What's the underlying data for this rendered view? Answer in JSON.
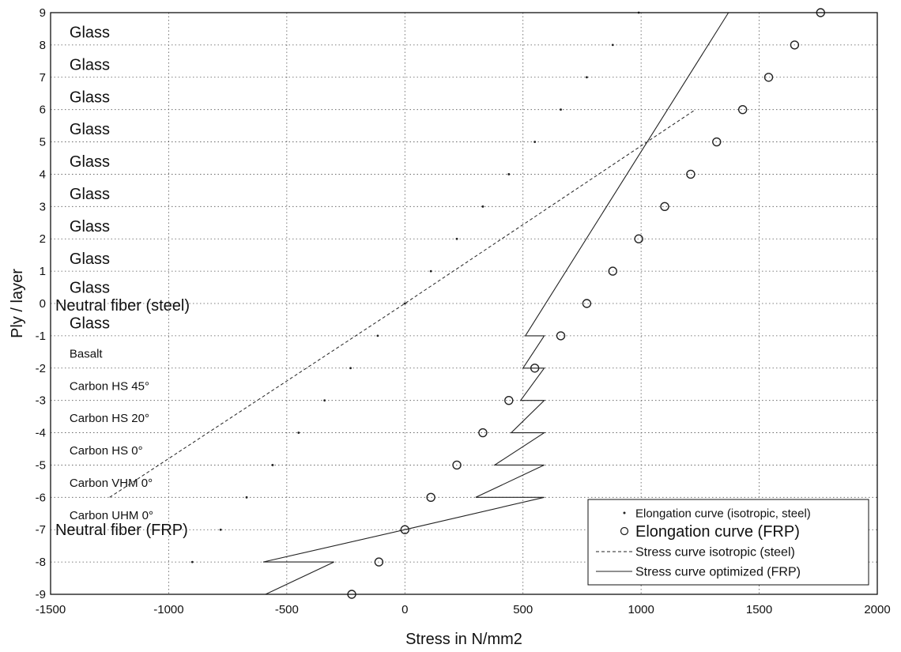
{
  "chart_data": {
    "type": "line",
    "xlabel": "Stress in N/mm2",
    "ylabel": "Ply / layer",
    "xlim": [
      -1500,
      2000
    ],
    "ylim": [
      -9,
      9
    ],
    "xticks": [
      -1500,
      -1000,
      -500,
      0,
      500,
      1000,
      1500,
      2000
    ],
    "yticks": [
      -9,
      -8,
      -7,
      -6,
      -5,
      -4,
      -3,
      -2,
      -1,
      0,
      1,
      2,
      3,
      4,
      5,
      6,
      7,
      8,
      9
    ],
    "grid": true,
    "legend_position": "bottom-right",
    "annotations": [
      {
        "text": "Glass",
        "x": -1420,
        "y": 8.4,
        "size": "large"
      },
      {
        "text": "Glass",
        "x": -1420,
        "y": 7.4,
        "size": "large"
      },
      {
        "text": "Glass",
        "x": -1420,
        "y": 6.4,
        "size": "large"
      },
      {
        "text": "Glass",
        "x": -1420,
        "y": 5.4,
        "size": "large"
      },
      {
        "text": "Glass",
        "x": -1420,
        "y": 4.4,
        "size": "large"
      },
      {
        "text": "Glass",
        "x": -1420,
        "y": 3.4,
        "size": "large"
      },
      {
        "text": "Glass",
        "x": -1420,
        "y": 2.4,
        "size": "large"
      },
      {
        "text": "Glass",
        "x": -1420,
        "y": 1.4,
        "size": "large"
      },
      {
        "text": "Glass",
        "x": -1420,
        "y": 0.5,
        "size": "large"
      },
      {
        "text": "Neutral fiber (steel)",
        "x": -1480,
        "y": -0.05,
        "size": "large"
      },
      {
        "text": "Glass",
        "x": -1420,
        "y": -0.6,
        "size": "large"
      },
      {
        "text": "Basalt",
        "x": -1420,
        "y": -1.55,
        "size": "small"
      },
      {
        "text": "Carbon HS 45°",
        "x": -1420,
        "y": -2.55,
        "size": "small"
      },
      {
        "text": "Carbon HS 20°",
        "x": -1420,
        "y": -3.55,
        "size": "small"
      },
      {
        "text": "Carbon HS 0°",
        "x": -1420,
        "y": -4.55,
        "size": "small"
      },
      {
        "text": "Carbon VHM 0°",
        "x": -1420,
        "y": -5.55,
        "size": "small"
      },
      {
        "text": "Carbon UHM 0°",
        "x": -1420,
        "y": -6.55,
        "size": "small"
      },
      {
        "text": "Neutral fiber (FRP)",
        "x": -1480,
        "y": -7.0,
        "size": "large"
      }
    ],
    "series": [
      {
        "name": "Elongation curve (isotropic, steel)",
        "style": "dots",
        "x": [
          -900,
          -780,
          -670,
          -560,
          -450,
          -340,
          -230,
          -115,
          0,
          110,
          220,
          330,
          440,
          550,
          660,
          770,
          880,
          990,
          1100
        ],
        "y": [
          -8,
          -7,
          -6,
          -5,
          -4,
          -3,
          -2,
          -1,
          0,
          1,
          2,
          3,
          4,
          5,
          6,
          7,
          8,
          9,
          10
        ]
      },
      {
        "name": "Elongation curve (FRP)",
        "style": "circles",
        "x": [
          -225,
          -110,
          0,
          110,
          220,
          330,
          440,
          550,
          660,
          770,
          880,
          990,
          1100,
          1210,
          1320,
          1430,
          1540,
          1650,
          1760
        ],
        "y": [
          -9,
          -8,
          -7,
          -6,
          -5,
          -4,
          -3,
          -2,
          -1,
          0,
          1,
          2,
          3,
          4,
          5,
          6,
          7,
          8,
          9
        ]
      },
      {
        "name": "Stress curve isotropic (steel)",
        "style": "dashed",
        "x": [
          -1250,
          0,
          1230
        ],
        "y": [
          -6,
          0,
          6
        ]
      },
      {
        "name": "Stress curve optimized (FRP)",
        "style": "solid",
        "x": [
          -590,
          -300,
          -600,
          0,
          590,
          300,
          590,
          380,
          590,
          450,
          590,
          490,
          590,
          500,
          590,
          510,
          1370
        ],
        "y": [
          -9,
          -8,
          -8,
          -7,
          -6,
          -6,
          -5,
          -5,
          -4,
          -4,
          -3,
          -3,
          -2,
          -2,
          -1,
          -1,
          9
        ]
      }
    ]
  }
}
